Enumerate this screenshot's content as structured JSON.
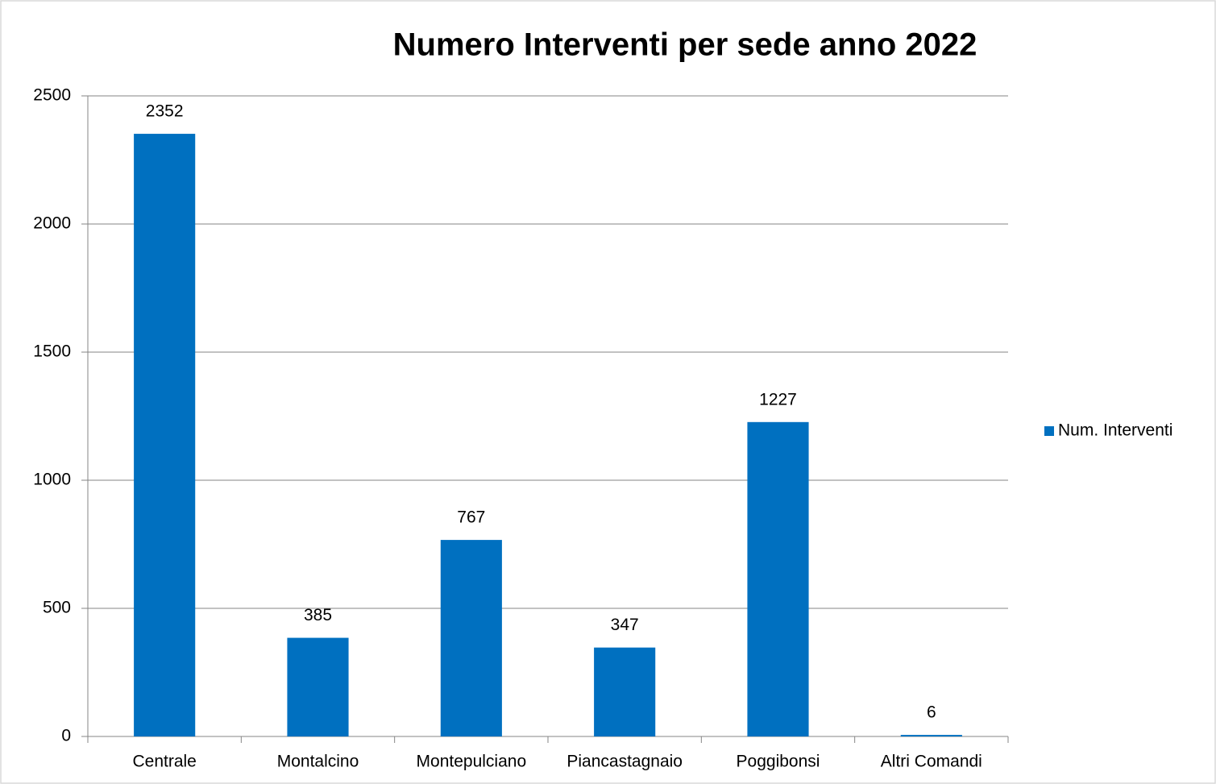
{
  "chart_data": {
    "type": "bar",
    "title": "Numero Interventi per sede  anno 2022",
    "categories": [
      "Centrale",
      "Montalcino",
      "Montepulciano",
      "Piancastagnaio",
      "Poggibonsi",
      "Altri Comandi"
    ],
    "series": [
      {
        "name": "Num. Interventi",
        "color": "#0070c0",
        "values": [
          2352,
          385,
          767,
          347,
          1227,
          6
        ]
      }
    ],
    "ylim": [
      0,
      2500
    ],
    "yticks": [
      0,
      500,
      1000,
      1500,
      2000,
      2500
    ],
    "grid": true,
    "legend": "right"
  }
}
